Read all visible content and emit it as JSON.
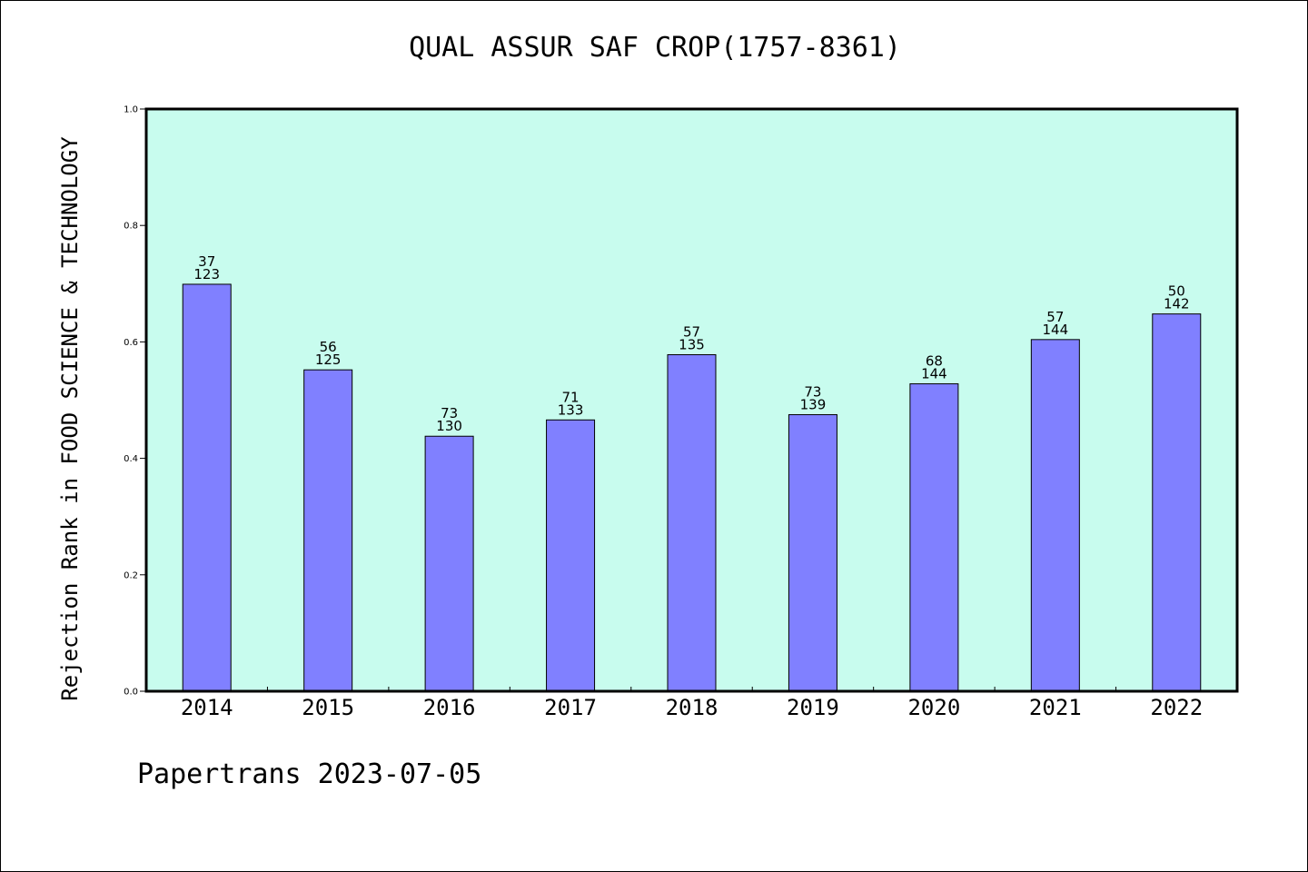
{
  "title": "QUAL ASSUR SAF CROP(1757-8361)",
  "footer": "Papertrans 2023-07-05",
  "colors": {
    "plot_background": "#c8fcee",
    "bar_fill": "#8080ff",
    "bar_stroke": "#000000",
    "frame": "#000000"
  },
  "chart_data": {
    "type": "bar",
    "title": "QUAL ASSUR SAF CROP(1757-8361)",
    "xlabel": "",
    "ylabel": "Rejection Rank in FOOD SCIENCE & TECHNOLOGY",
    "ylim": [
      0,
      1.0
    ],
    "yticks": [
      "0.0",
      "0.2",
      "0.4",
      "0.6",
      "0.8",
      "1.0"
    ],
    "grid": false,
    "categories": [
      "2014",
      "2015",
      "2016",
      "2017",
      "2018",
      "2019",
      "2020",
      "2021",
      "2022"
    ],
    "values": [
      0.699,
      0.552,
      0.438,
      0.466,
      0.578,
      0.475,
      0.528,
      0.604,
      0.648
    ],
    "labels_top": [
      "37",
      "56",
      "73",
      "71",
      "57",
      "73",
      "68",
      "57",
      "50"
    ],
    "labels_bottom": [
      "123",
      "125",
      "130",
      "133",
      "135",
      "139",
      "144",
      "144",
      "142"
    ]
  }
}
